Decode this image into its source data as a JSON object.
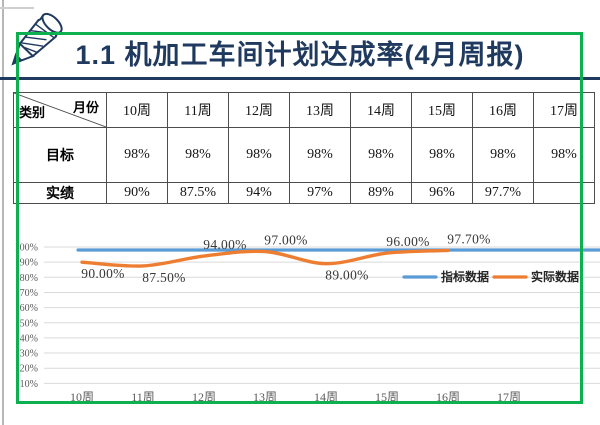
{
  "title": "1.1  机加工车间计划达成率(4月周报)",
  "accent_colors": {
    "navy": "#203a5f",
    "selection_green": "#0db04e",
    "target_blue": "#5b9bd5",
    "actual_orange": "#ed7d31"
  },
  "table": {
    "corner": {
      "top_right": "月份",
      "bottom_left": "类别"
    },
    "week_headers": [
      "10周",
      "11周",
      "12周",
      "13周",
      "14周",
      "15周",
      "16周",
      "17周"
    ],
    "rows": [
      {
        "label": "目标",
        "values": [
          "98%",
          "98%",
          "98%",
          "98%",
          "98%",
          "98%",
          "98%",
          "98%"
        ]
      },
      {
        "label": "实绩",
        "values": [
          "90%",
          "87.5%",
          "94%",
          "97%",
          "89%",
          "96%",
          "97.7%",
          ""
        ]
      }
    ]
  },
  "chart_data": {
    "type": "line",
    "title": "",
    "categories": [
      "10周",
      "11周",
      "12周",
      "13周",
      "14周",
      "15周",
      "16周",
      "17周"
    ],
    "series": [
      {
        "name": "指标数据",
        "color": "#5b9bd5",
        "values": [
          98,
          98,
          98,
          98,
          98,
          98,
          98,
          98
        ]
      },
      {
        "name": "实际数据",
        "color": "#ed7d31",
        "values": [
          90,
          87.5,
          94,
          97,
          89,
          96,
          97.7,
          null
        ],
        "point_labels": [
          "90.00%",
          "87.50%",
          "94.00%",
          "97.00%",
          "89.00%",
          "96.00%",
          "97.70%",
          ""
        ],
        "label_side": [
          "below",
          "below",
          "above",
          "above",
          "below",
          "above",
          "above",
          ""
        ]
      }
    ],
    "y_ticks": [
      "10%",
      "20%",
      "30%",
      "40%",
      "50%",
      "60%",
      "70%",
      "80%",
      "90%",
      "100%"
    ],
    "ylim": [
      0,
      100
    ],
    "xlabel": "",
    "ylabel": "",
    "grid": true,
    "legend_position": "middle-right"
  }
}
